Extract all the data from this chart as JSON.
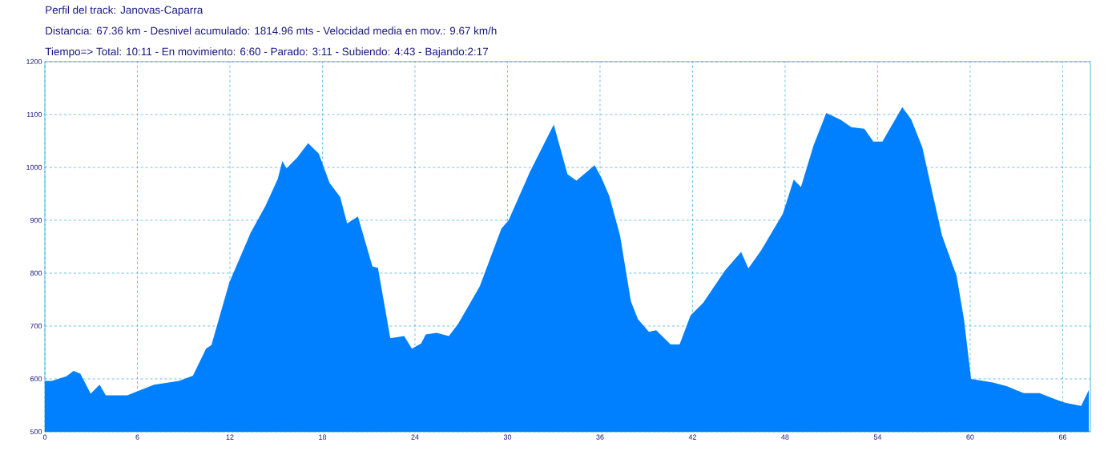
{
  "chart_data": {
    "type": "area",
    "title": "Perfil del track: Janovas-Caparra",
    "subtitle": "Distancia: 67.36 km - Desnivel acumulado: 1814.96 mts - Velocidad media en mov.: 9.67 km/h",
    "annotations": [
      "Tiempo=> Total: 10:11 - En movimiento: 6:60 - Parado: 3:11 - Subiendo: 4:43 - Bajando:2:17"
    ],
    "color": "#0080ff",
    "grid": true,
    "xlim": [
      0,
      67.8
    ],
    "ylim": [
      500,
      1200
    ],
    "xticks": [
      0,
      6,
      12,
      18,
      24,
      30,
      36,
      42,
      48,
      54,
      60,
      66
    ],
    "yticks": [
      500,
      600,
      700,
      800,
      900,
      1000,
      1100,
      1200
    ],
    "x": [
      0,
      0.46,
      1.4,
      1.86,
      2.3,
      2.97,
      3.55,
      3.95,
      5.34,
      7.08,
      8.7,
      9.6,
      10.45,
      10.8,
      11.96,
      13.35,
      14.3,
      15.1,
      15.4,
      15.67,
      16.37,
      17.07,
      17.76,
      18.46,
      19.15,
      19.6,
      20.3,
      21.24,
      21.6,
      22.4,
      23.3,
      23.8,
      24.4,
      24.7,
      25.4,
      26.2,
      26.8,
      28.2,
      29.6,
      30.07,
      31.46,
      33.0,
      33.89,
      34.47,
      35.65,
      36.1,
      36.6,
      37.3,
      38.0,
      38.46,
      39.17,
      39.64,
      40.58,
      41.16,
      41.87,
      42.69,
      44.1,
      45.15,
      45.62,
      46.45,
      47.85,
      48.56,
      49.03,
      49.85,
      50.67,
      51.6,
      52.3,
      53.14,
      53.72,
      54.31,
      55.6,
      56.19,
      56.9,
      57.6,
      58.18,
      58.77,
      59.12,
      59.6,
      60.06,
      61.47,
      62.4,
      63.47,
      64.5,
      65.46,
      66.16,
      67.2,
      67.7
    ],
    "values": [
      596,
      596,
      605,
      615,
      610,
      572,
      589,
      569,
      569,
      589,
      596,
      606,
      657,
      664,
      782,
      877,
      927,
      978,
      1012,
      998,
      1019,
      1046,
      1026,
      971,
      944,
      894,
      907,
      813,
      810,
      677,
      681,
      657,
      667,
      684,
      687,
      681,
      704,
      775,
      884,
      900,
      992,
      1081,
      987,
      975,
      1004,
      980,
      946,
      871,
      747,
      713,
      689,
      692,
      665,
      665,
      720,
      744,
      805,
      840,
      809,
      843,
      912,
      977,
      963,
      1042,
      1103,
      1090,
      1076,
      1073,
      1049,
      1049,
      1114,
      1090,
      1038,
      946,
      871,
      823,
      795,
      713,
      600,
      593,
      586,
      573,
      573,
      562,
      555,
      549,
      579
    ]
  }
}
